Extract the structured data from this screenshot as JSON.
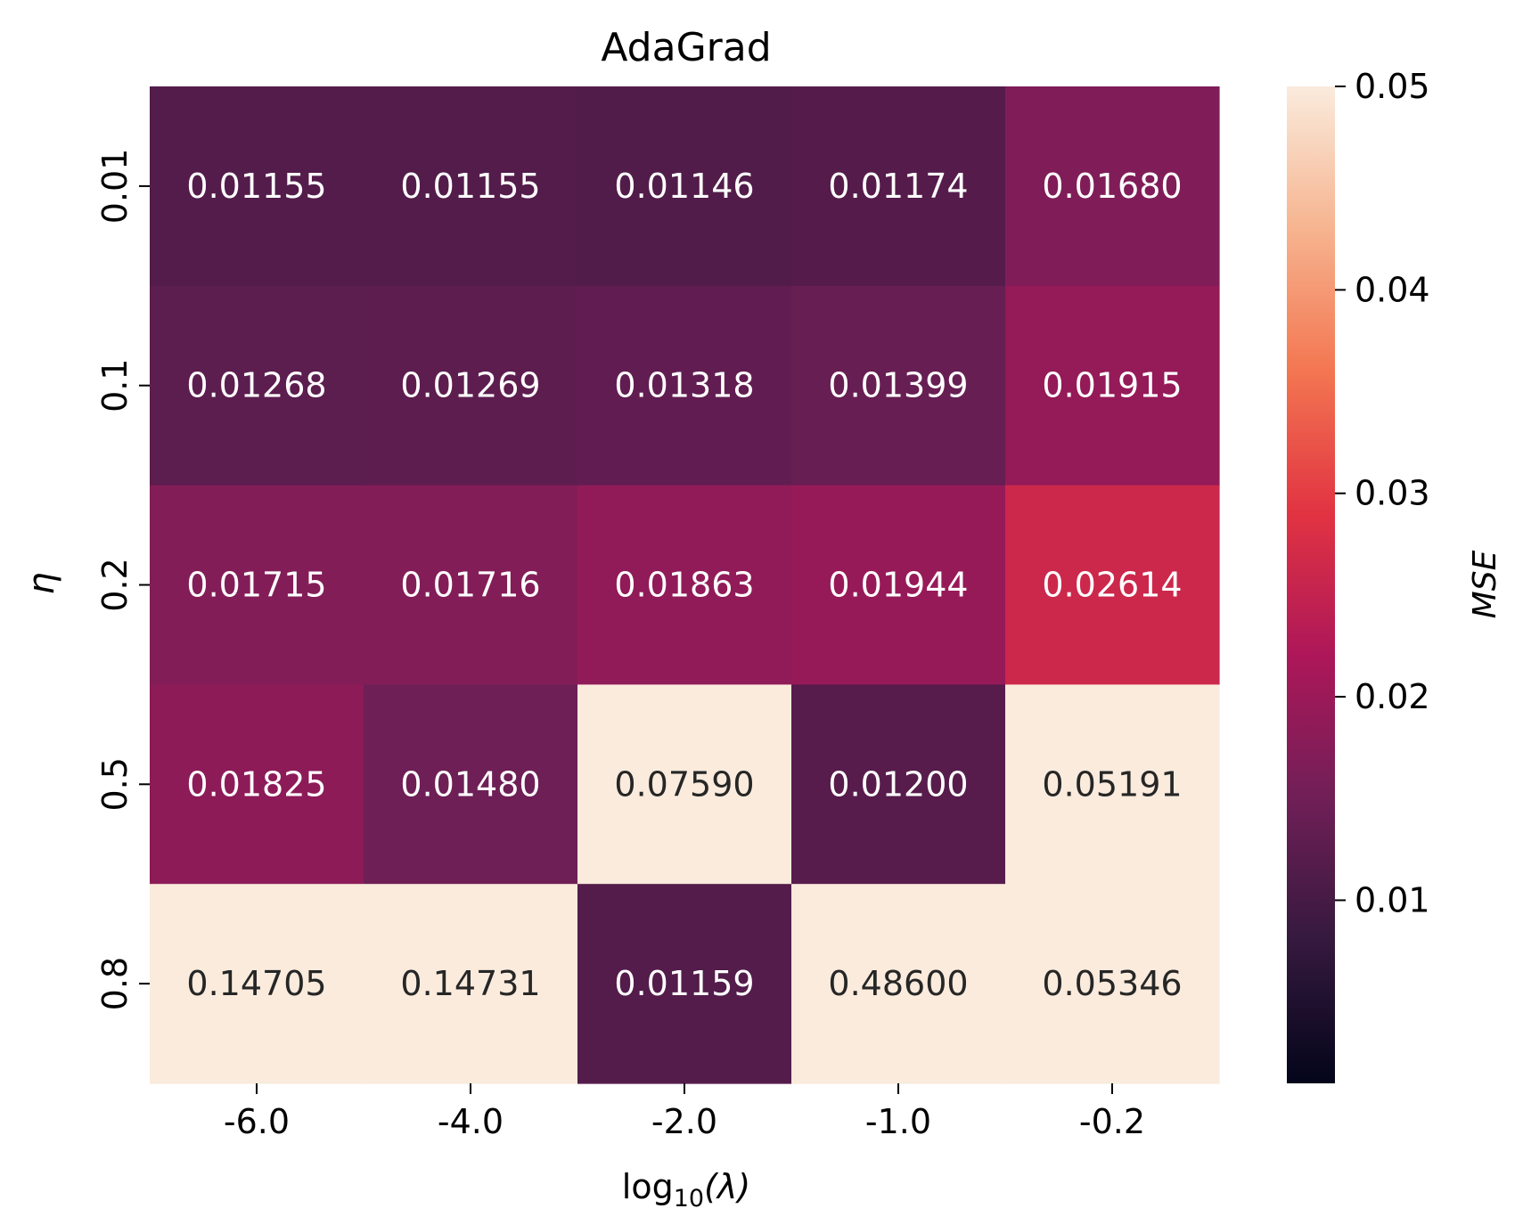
{
  "chart_data": {
    "type": "heatmap",
    "title": "AdaGrad",
    "xlabel": "log10(λ)",
    "xlabel_parts": {
      "base": "log",
      "sub": "10",
      "arg": "(λ)"
    },
    "ylabel": "η",
    "x_categories": [
      "-6.0",
      "-4.0",
      "-2.0",
      "-1.0",
      "-0.2"
    ],
    "y_categories": [
      "0.01",
      "0.1",
      "0.2",
      "0.5",
      "0.8"
    ],
    "values": [
      [
        0.01155,
        0.01155,
        0.01146,
        0.01174,
        0.0168
      ],
      [
        0.01268,
        0.01269,
        0.01318,
        0.01399,
        0.01915
      ],
      [
        0.01715,
        0.01716,
        0.01863,
        0.01944,
        0.02614
      ],
      [
        0.01825,
        0.0148,
        0.0759,
        0.012,
        0.05191
      ],
      [
        0.14705,
        0.14731,
        0.01159,
        0.486,
        0.05346
      ]
    ],
    "value_labels": [
      [
        "0.01155",
        "0.01155",
        "0.01146",
        "0.01174",
        "0.01680"
      ],
      [
        "0.01268",
        "0.01269",
        "0.01318",
        "0.01399",
        "0.01915"
      ],
      [
        "0.01715",
        "0.01716",
        "0.01863",
        "0.01944",
        "0.02614"
      ],
      [
        "0.01825",
        "0.01480",
        "0.07590",
        "0.01200",
        "0.05191"
      ],
      [
        "0.14705",
        "0.14731",
        "0.01159",
        "0.48600",
        "0.05346"
      ]
    ],
    "colorbar": {
      "label": "MSE",
      "vmin": 0.001,
      "vmax": 0.05,
      "ticks": [
        0.01,
        0.02,
        0.03,
        0.04,
        0.05
      ],
      "tick_labels": [
        "0.01",
        "0.02",
        "0.03",
        "0.04",
        "0.05"
      ],
      "colormap": "rocket"
    },
    "colormap_stops": [
      "#03051a",
      "#35193e",
      "#701f57",
      "#ad1759",
      "#e13342",
      "#f37651",
      "#f6b48f",
      "#faebdd"
    ],
    "annotation_colors": {
      "on_dark": "#ffffff",
      "on_light": "#262626"
    }
  }
}
